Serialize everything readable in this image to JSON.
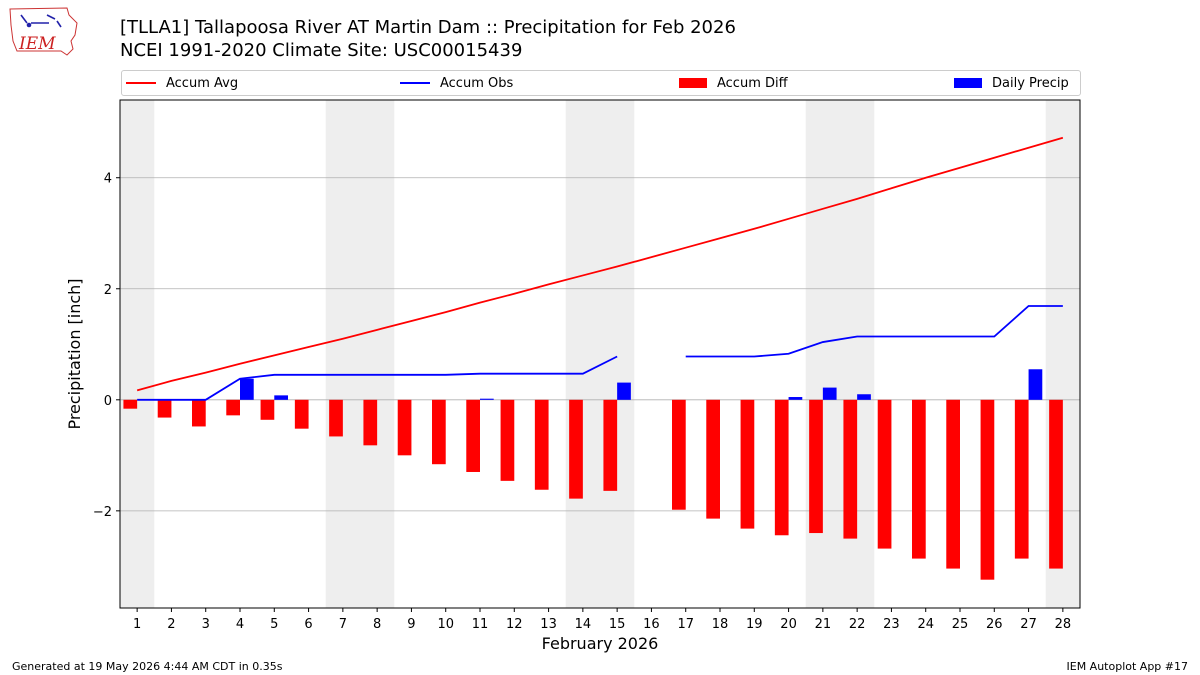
{
  "title_line1": "[TLLA1] Tallapoosa River  AT Martin Dam :: Precipitation for Feb 2026",
  "title_line2": "NCEI 1991-2020 Climate Site: USC00015439",
  "logo_text": "IEM",
  "footer_left": "Generated at 19 May 2026 4:44 AM CDT in 0.35s",
  "footer_right": "IEM Autoplot App #17",
  "colors": {
    "avg": "#ff0000",
    "obs": "#0000ff",
    "diff": "#ff0000",
    "daily": "#0000ff",
    "weekend": "#eeeeee",
    "grid": "#b0b0b0"
  },
  "chart_data": {
    "type": "bar",
    "xlabel": "February 2026",
    "ylabel": "Precipitation [inch]",
    "ylim": [
      -3.75,
      5.4
    ],
    "xlim": [
      0.5,
      28.5
    ],
    "yticks": [
      -2,
      0,
      2,
      4
    ],
    "ytick_labels": [
      "−2",
      "0",
      "2",
      "4"
    ],
    "categories": [
      "1",
      "2",
      "3",
      "4",
      "5",
      "6",
      "7",
      "8",
      "9",
      "10",
      "11",
      "12",
      "13",
      "14",
      "15",
      "16",
      "17",
      "18",
      "19",
      "20",
      "21",
      "22",
      "23",
      "24",
      "25",
      "26",
      "27",
      "28"
    ],
    "grid": "horizontal",
    "legend_position": "top",
    "shaded_weekend_days": [
      1,
      7,
      8,
      14,
      15,
      21,
      22,
      28
    ],
    "legend": [
      "Accum Avg",
      "Accum Obs",
      "Accum Diff",
      "Daily Precip"
    ],
    "series": [
      {
        "name": "Accum Avg",
        "kind": "line",
        "color": "#ff0000",
        "values": [
          0.17,
          0.34,
          0.49,
          0.65,
          0.8,
          0.95,
          1.1,
          1.26,
          1.42,
          1.58,
          1.75,
          1.91,
          2.08,
          2.24,
          2.4,
          2.57,
          2.74,
          2.91,
          3.08,
          3.26,
          3.44,
          3.62,
          3.81,
          4.0,
          4.18,
          4.36,
          4.54,
          4.72
        ]
      },
      {
        "name": "Accum Obs",
        "kind": "line",
        "color": "#0000ff",
        "values": [
          0.0,
          0.0,
          0.0,
          0.38,
          0.45,
          0.45,
          0.45,
          0.45,
          0.45,
          0.45,
          0.47,
          0.47,
          0.47,
          0.47,
          0.78,
          null,
          0.78,
          0.78,
          0.78,
          0.83,
          1.04,
          1.14,
          1.14,
          1.14,
          1.14,
          1.14,
          1.69,
          1.69
        ]
      },
      {
        "name": "Accum Diff",
        "kind": "bar",
        "color": "#ff0000",
        "values": [
          -0.16,
          -0.32,
          -0.48,
          -0.28,
          -0.36,
          -0.52,
          -0.66,
          -0.82,
          -1.0,
          -1.16,
          -1.3,
          -1.46,
          -1.62,
          -1.78,
          -1.64,
          null,
          -1.98,
          -2.14,
          -2.32,
          -2.44,
          -2.4,
          -2.5,
          -2.68,
          -2.86,
          -3.04,
          -3.24,
          -2.86,
          -3.04
        ]
      },
      {
        "name": "Daily Precip",
        "kind": "bar",
        "color": "#0000ff",
        "values": [
          0.0,
          0.0,
          0.0,
          0.38,
          0.08,
          0.0,
          0.0,
          0.0,
          0.0,
          0.0,
          0.02,
          0.0,
          0.0,
          0.0,
          0.31,
          null,
          0.0,
          0.0,
          0.0,
          0.05,
          0.22,
          0.1,
          0.0,
          0.0,
          0.0,
          0.0,
          0.55,
          0.0
        ]
      }
    ]
  }
}
